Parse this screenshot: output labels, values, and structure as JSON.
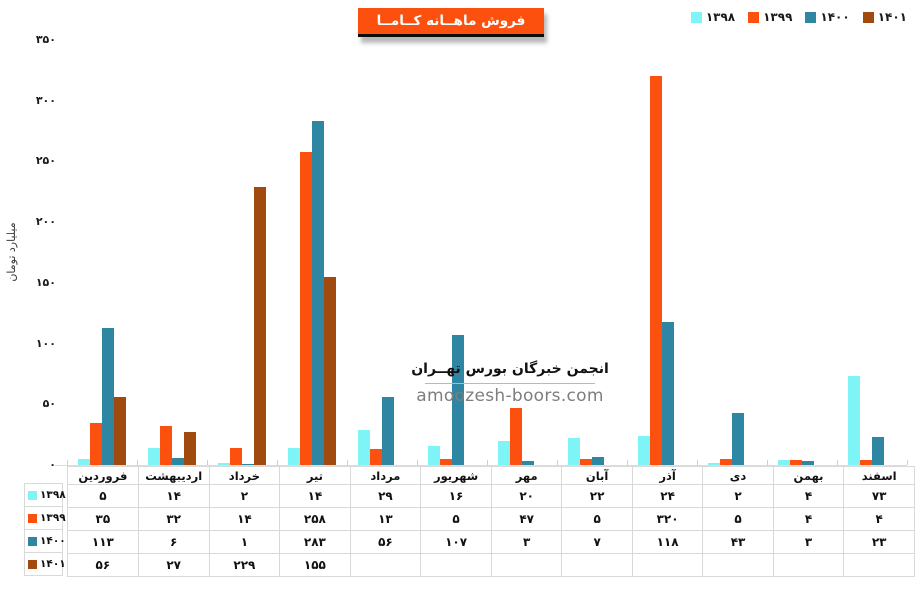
{
  "title": "فروش ماهــانه کــامــا",
  "accent_color": "#FB500E",
  "legend": {
    "position": "top-right",
    "items": [
      {
        "label": "۱۳۹۸",
        "color": "#7FF4F6"
      },
      {
        "label": "۱۳۹۹",
        "color": "#FB500E"
      },
      {
        "label": "۱۴۰۰",
        "color": "#2E86A3"
      },
      {
        "label": "۱۴۰۱",
        "color": "#A04A10"
      }
    ]
  },
  "y_axis": {
    "title": "میلیارد تومان",
    "ticks": [
      {
        "value": 0,
        "label": "۰"
      },
      {
        "value": 50,
        "label": "۵۰"
      },
      {
        "value": 100,
        "label": "۱۰۰"
      },
      {
        "value": 150,
        "label": "۱۵۰"
      },
      {
        "value": 200,
        "label": "۲۰۰"
      },
      {
        "value": 250,
        "label": "۲۵۰"
      },
      {
        "value": 300,
        "label": "۳۰۰"
      },
      {
        "value": 350,
        "label": "۳۵۰"
      }
    ]
  },
  "watermark": {
    "line1": "انجمن خبرگان بورس تهــران",
    "line2": "amoozesh-boors.com"
  },
  "chart_data": {
    "type": "bar",
    "title": "فروش ماهــانه کــامــا",
    "xlabel": "",
    "ylabel": "میلیارد تومان",
    "ylim": [
      0,
      350
    ],
    "grid": false,
    "legend_position": "top-right",
    "categories": [
      "فروردین",
      "اردیبهشت",
      "خرداد",
      "تیر",
      "مرداد",
      "شهریور",
      "مهر",
      "آبان",
      "آذر",
      "دی",
      "بهمن",
      "اسفند"
    ],
    "series": [
      {
        "name": "۱۳۹۸",
        "color": "#7FF4F6",
        "values": [
          5,
          14,
          2,
          14,
          29,
          16,
          20,
          22,
          24,
          2,
          4,
          73
        ]
      },
      {
        "name": "۱۳۹۹",
        "color": "#FB500E",
        "values": [
          35,
          32,
          14,
          258,
          13,
          5,
          47,
          5,
          320,
          5,
          4,
          4
        ]
      },
      {
        "name": "۱۴۰۰",
        "color": "#2E86A3",
        "values": [
          113,
          6,
          1,
          283,
          56,
          107,
          3,
          7,
          118,
          43,
          3,
          23
        ]
      },
      {
        "name": "۱۴۰۱",
        "color": "#A04A10",
        "values": [
          56,
          27,
          229,
          155,
          null,
          null,
          null,
          null,
          null,
          null,
          null,
          null
        ]
      }
    ]
  },
  "table": {
    "rows": [
      {
        "key": "۱۳۹۸",
        "color": "#7FF4F6",
        "cells": [
          "۵",
          "۱۴",
          "۲",
          "۱۴",
          "۲۹",
          "۱۶",
          "۲۰",
          "۲۲",
          "۲۴",
          "۲",
          "۴",
          "۷۳"
        ]
      },
      {
        "key": "۱۳۹۹",
        "color": "#FB500E",
        "cells": [
          "۳۵",
          "۳۲",
          "۱۴",
          "۲۵۸",
          "۱۳",
          "۵",
          "۴۷",
          "۵",
          "۳۲۰",
          "۵",
          "۴",
          "۴"
        ]
      },
      {
        "key": "۱۴۰۰",
        "color": "#2E86A3",
        "cells": [
          "۱۱۳",
          "۶",
          "۱",
          "۲۸۳",
          "۵۶",
          "۱۰۷",
          "۳",
          "۷",
          "۱۱۸",
          "۴۳",
          "۳",
          "۲۳"
        ]
      },
      {
        "key": "۱۴۰۱",
        "color": "#A04A10",
        "cells": [
          "۵۶",
          "۲۷",
          "۲۲۹",
          "۱۵۵",
          "",
          "",
          "",
          "",
          "",
          "",
          "",
          ""
        ]
      }
    ]
  }
}
